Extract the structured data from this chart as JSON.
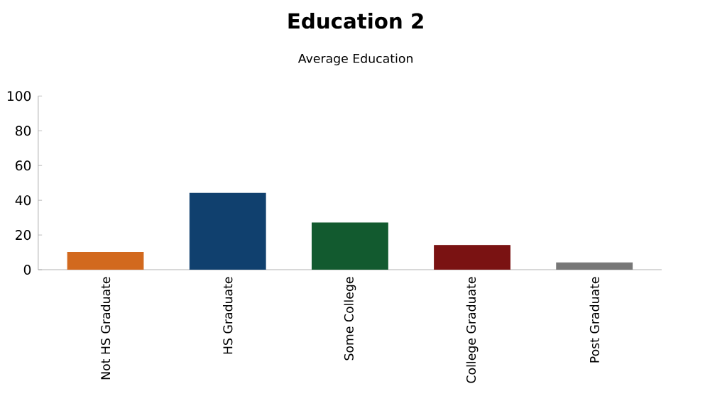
{
  "chart_data": {
    "type": "bar",
    "title": "Education 2",
    "subtitle": "Average Education",
    "categories": [
      "Not HS Graduate",
      "HS Graduate",
      "Some College",
      "College Graduate",
      "Post Graduate"
    ],
    "values": [
      10,
      44,
      27,
      14,
      4
    ],
    "colors": [
      "#d2691e",
      "#10406e",
      "#125a2f",
      "#7a1212",
      "#777777"
    ],
    "ylim": [
      0,
      100
    ],
    "yticks": [
      0,
      20,
      40,
      60,
      80,
      100
    ]
  }
}
